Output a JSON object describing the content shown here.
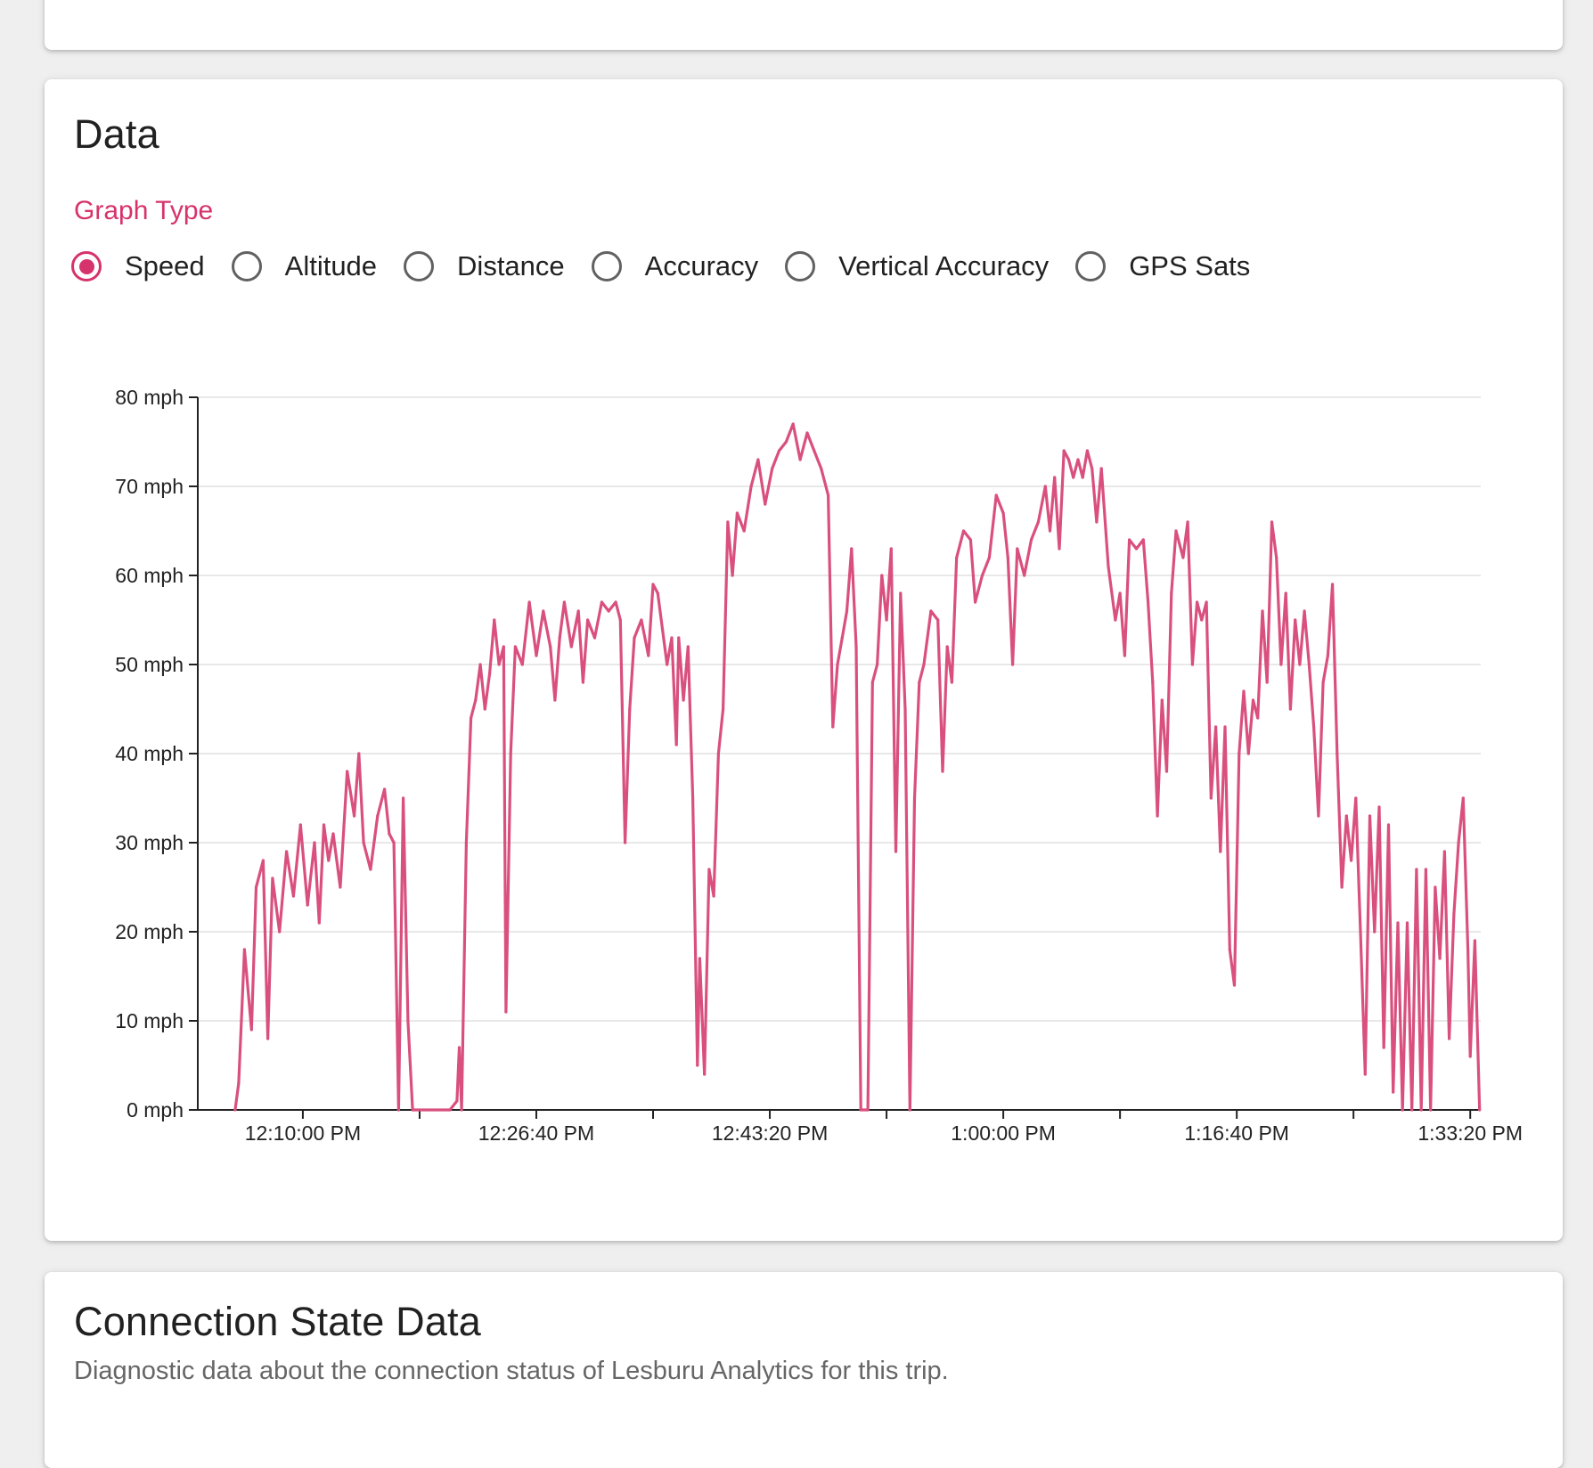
{
  "data_card": {
    "title": "Data",
    "graph_type_label": "Graph Type",
    "graph_types": [
      {
        "label": "Speed",
        "selected": true
      },
      {
        "label": "Altitude",
        "selected": false
      },
      {
        "label": "Distance",
        "selected": false
      },
      {
        "label": "Accuracy",
        "selected": false
      },
      {
        "label": "Vertical Accuracy",
        "selected": false
      },
      {
        "label": "GPS Sats",
        "selected": false
      }
    ]
  },
  "connection_card": {
    "title": "Connection State Data",
    "subtitle": "Diagnostic data about the connection status of Lesburu Analytics for this trip."
  },
  "colors": {
    "accent": "#d6336c",
    "line": "#d9507e",
    "grid": "#e0e0e0"
  },
  "chart_data": {
    "type": "line",
    "title": "",
    "xlabel": "",
    "ylabel": "",
    "ylim": [
      0,
      80
    ],
    "y_ticks": [
      {
        "value": 0,
        "label": "0 mph"
      },
      {
        "value": 10,
        "label": "10 mph"
      },
      {
        "value": 20,
        "label": "20 mph"
      },
      {
        "value": 30,
        "label": "30 mph"
      },
      {
        "value": 40,
        "label": "40 mph"
      },
      {
        "value": 50,
        "label": "50 mph"
      },
      {
        "value": 60,
        "label": "60 mph"
      },
      {
        "value": 70,
        "label": "70 mph"
      },
      {
        "value": 80,
        "label": "80 mph"
      }
    ],
    "x_ticks": [
      "12:10:00 PM",
      "12:26:40 PM",
      "12:43:20 PM",
      "1:00:00 PM",
      "1:16:40 PM",
      "1:33:20 PM"
    ],
    "grid": true,
    "series": [
      {
        "name": "",
        "points": [
          [
            "12:05:10 PM",
            0
          ],
          [
            "12:05:25 PM",
            3
          ],
          [
            "12:05:50 PM",
            18
          ],
          [
            "12:06:20 PM",
            9
          ],
          [
            "12:06:40 PM",
            25
          ],
          [
            "12:07:10 PM",
            28
          ],
          [
            "12:07:30 PM",
            8
          ],
          [
            "12:07:50 PM",
            26
          ],
          [
            "12:08:20 PM",
            20
          ],
          [
            "12:08:50 PM",
            29
          ],
          [
            "12:09:20 PM",
            24
          ],
          [
            "12:09:50 PM",
            32
          ],
          [
            "12:10:20 PM",
            23
          ],
          [
            "12:10:50 PM",
            30
          ],
          [
            "12:11:10 PM",
            21
          ],
          [
            "12:11:30 PM",
            32
          ],
          [
            "12:11:50 PM",
            28
          ],
          [
            "12:12:10 PM",
            31
          ],
          [
            "12:12:40 PM",
            25
          ],
          [
            "12:13:10 PM",
            38
          ],
          [
            "12:13:40 PM",
            33
          ],
          [
            "12:14:00 PM",
            40
          ],
          [
            "12:14:20 PM",
            30
          ],
          [
            "12:14:50 PM",
            27
          ],
          [
            "12:15:20 PM",
            33
          ],
          [
            "12:15:50 PM",
            36
          ],
          [
            "12:16:10 PM",
            31
          ],
          [
            "12:16:30 PM",
            30
          ],
          [
            "12:16:50 PM",
            0
          ],
          [
            "12:17:10 PM",
            35
          ],
          [
            "12:17:30 PM",
            10
          ],
          [
            "12:17:50 PM",
            0
          ],
          [
            "12:20:30 PM",
            0
          ],
          [
            "12:21:00 PM",
            1
          ],
          [
            "12:21:10 PM",
            7
          ],
          [
            "12:21:20 PM",
            0
          ],
          [
            "12:21:40 PM",
            30
          ],
          [
            "12:22:00 PM",
            44
          ],
          [
            "12:22:20 PM",
            46
          ],
          [
            "12:22:40 PM",
            50
          ],
          [
            "12:23:00 PM",
            45
          ],
          [
            "12:23:20 PM",
            49
          ],
          [
            "12:23:40 PM",
            55
          ],
          [
            "12:24:00 PM",
            50
          ],
          [
            "12:24:20 PM",
            52
          ],
          [
            "12:24:30 PM",
            11
          ],
          [
            "12:24:50 PM",
            40
          ],
          [
            "12:25:10 PM",
            52
          ],
          [
            "12:25:40 PM",
            50
          ],
          [
            "12:26:10 PM",
            57
          ],
          [
            "12:26:40 PM",
            51
          ],
          [
            "12:27:10 PM",
            56
          ],
          [
            "12:27:40 PM",
            52
          ],
          [
            "12:28:00 PM",
            46
          ],
          [
            "12:28:20 PM",
            53
          ],
          [
            "12:28:40 PM",
            57
          ],
          [
            "12:29:10 PM",
            52
          ],
          [
            "12:29:40 PM",
            56
          ],
          [
            "12:30:00 PM",
            48
          ],
          [
            "12:30:20 PM",
            55
          ],
          [
            "12:30:50 PM",
            53
          ],
          [
            "12:31:20 PM",
            57
          ],
          [
            "12:31:50 PM",
            56
          ],
          [
            "12:32:20 PM",
            57
          ],
          [
            "12:32:40 PM",
            55
          ],
          [
            "12:33:00 PM",
            30
          ],
          [
            "12:33:20 PM",
            45
          ],
          [
            "12:33:40 PM",
            53
          ],
          [
            "12:34:10 PM",
            55
          ],
          [
            "12:34:40 PM",
            51
          ],
          [
            "12:35:00 PM",
            59
          ],
          [
            "12:35:20 PM",
            58
          ],
          [
            "12:35:40 PM",
            54
          ],
          [
            "12:36:00 PM",
            50
          ],
          [
            "12:36:20 PM",
            53
          ],
          [
            "12:36:40 PM",
            41
          ],
          [
            "12:36:50 PM",
            53
          ],
          [
            "12:37:10 PM",
            46
          ],
          [
            "12:37:30 PM",
            52
          ],
          [
            "12:37:50 PM",
            35
          ],
          [
            "12:38:10 PM",
            5
          ],
          [
            "12:38:20 PM",
            17
          ],
          [
            "12:38:40 PM",
            4
          ],
          [
            "12:39:00 PM",
            27
          ],
          [
            "12:39:20 PM",
            24
          ],
          [
            "12:39:40 PM",
            40
          ],
          [
            "12:40:00 PM",
            45
          ],
          [
            "12:40:20 PM",
            66
          ],
          [
            "12:40:40 PM",
            60
          ],
          [
            "12:41:00 PM",
            67
          ],
          [
            "12:41:30 PM",
            65
          ],
          [
            "12:42:00 PM",
            70
          ],
          [
            "12:42:30 PM",
            73
          ],
          [
            "12:43:00 PM",
            68
          ],
          [
            "12:43:30 PM",
            72
          ],
          [
            "12:44:00 PM",
            74
          ],
          [
            "12:44:30 PM",
            75
          ],
          [
            "12:45:00 PM",
            77
          ],
          [
            "12:45:30 PM",
            73
          ],
          [
            "12:46:00 PM",
            76
          ],
          [
            "12:46:30 PM",
            74
          ],
          [
            "12:47:00 PM",
            72
          ],
          [
            "12:47:30 PM",
            69
          ],
          [
            "12:47:50 PM",
            43
          ],
          [
            "12:48:10 PM",
            50
          ],
          [
            "12:48:30 PM",
            53
          ],
          [
            "12:48:50 PM",
            56
          ],
          [
            "12:49:10 PM",
            63
          ],
          [
            "12:49:30 PM",
            52
          ],
          [
            "12:49:50 PM",
            0
          ],
          [
            "12:50:20 PM",
            0
          ],
          [
            "12:50:40 PM",
            48
          ],
          [
            "12:51:00 PM",
            50
          ],
          [
            "12:51:20 PM",
            60
          ],
          [
            "12:51:40 PM",
            55
          ],
          [
            "12:52:00 PM",
            63
          ],
          [
            "12:52:20 PM",
            29
          ],
          [
            "12:52:40 PM",
            58
          ],
          [
            "12:53:00 PM",
            45
          ],
          [
            "12:53:20 PM",
            0
          ],
          [
            "12:53:40 PM",
            35
          ],
          [
            "12:54:00 PM",
            48
          ],
          [
            "12:54:20 PM",
            50
          ],
          [
            "12:54:50 PM",
            56
          ],
          [
            "12:55:20 PM",
            55
          ],
          [
            "12:55:40 PM",
            38
          ],
          [
            "12:56:00 PM",
            52
          ],
          [
            "12:56:20 PM",
            48
          ],
          [
            "12:56:40 PM",
            62
          ],
          [
            "12:57:10 PM",
            65
          ],
          [
            "12:57:40 PM",
            64
          ],
          [
            "12:58:00 PM",
            57
          ],
          [
            "12:58:30 PM",
            60
          ],
          [
            "12:59:00 PM",
            62
          ],
          [
            "12:59:30 PM",
            69
          ],
          [
            "1:00:00 PM",
            67
          ],
          [
            "1:00:20 PM",
            62
          ],
          [
            "1:00:40 PM",
            50
          ],
          [
            "1:01:00 PM",
            63
          ],
          [
            "1:01:30 PM",
            60
          ],
          [
            "1:02:00 PM",
            64
          ],
          [
            "1:02:30 PM",
            66
          ],
          [
            "1:03:00 PM",
            70
          ],
          [
            "1:03:20 PM",
            65
          ],
          [
            "1:03:40 PM",
            71
          ],
          [
            "1:04:00 PM",
            63
          ],
          [
            "1:04:20 PM",
            74
          ],
          [
            "1:04:40 PM",
            73
          ],
          [
            "1:05:00 PM",
            71
          ],
          [
            "1:05:20 PM",
            73
          ],
          [
            "1:05:40 PM",
            71
          ],
          [
            "1:06:00 PM",
            74
          ],
          [
            "1:06:20 PM",
            72
          ],
          [
            "1:06:40 PM",
            66
          ],
          [
            "1:07:00 PM",
            72
          ],
          [
            "1:07:30 PM",
            61
          ],
          [
            "1:08:00 PM",
            55
          ],
          [
            "1:08:20 PM",
            58
          ],
          [
            "1:08:40 PM",
            51
          ],
          [
            "1:09:00 PM",
            64
          ],
          [
            "1:09:30 PM",
            63
          ],
          [
            "1:10:00 PM",
            64
          ],
          [
            "1:10:20 PM",
            57
          ],
          [
            "1:10:40 PM",
            48
          ],
          [
            "1:11:00 PM",
            33
          ],
          [
            "1:11:20 PM",
            46
          ],
          [
            "1:11:40 PM",
            38
          ],
          [
            "1:12:00 PM",
            58
          ],
          [
            "1:12:20 PM",
            65
          ],
          [
            "1:12:50 PM",
            62
          ],
          [
            "1:13:10 PM",
            66
          ],
          [
            "1:13:30 PM",
            50
          ],
          [
            "1:13:50 PM",
            57
          ],
          [
            "1:14:10 PM",
            55
          ],
          [
            "1:14:30 PM",
            57
          ],
          [
            "1:14:50 PM",
            35
          ],
          [
            "1:15:10 PM",
            43
          ],
          [
            "1:15:30 PM",
            29
          ],
          [
            "1:15:50 PM",
            43
          ],
          [
            "1:16:10 PM",
            18
          ],
          [
            "1:16:30 PM",
            14
          ],
          [
            "1:16:50 PM",
            40
          ],
          [
            "1:17:10 PM",
            47
          ],
          [
            "1:17:30 PM",
            40
          ],
          [
            "1:17:50 PM",
            46
          ],
          [
            "1:18:10 PM",
            44
          ],
          [
            "1:18:30 PM",
            56
          ],
          [
            "1:18:50 PM",
            48
          ],
          [
            "1:19:10 PM",
            66
          ],
          [
            "1:19:30 PM",
            62
          ],
          [
            "1:19:50 PM",
            50
          ],
          [
            "1:20:10 PM",
            58
          ],
          [
            "1:20:30 PM",
            45
          ],
          [
            "1:20:50 PM",
            55
          ],
          [
            "1:21:10 PM",
            50
          ],
          [
            "1:21:30 PM",
            56
          ],
          [
            "1:21:50 PM",
            50
          ],
          [
            "1:22:10 PM",
            43
          ],
          [
            "1:22:30 PM",
            33
          ],
          [
            "1:22:50 PM",
            48
          ],
          [
            "1:23:10 PM",
            51
          ],
          [
            "1:23:30 PM",
            59
          ],
          [
            "1:23:50 PM",
            40
          ],
          [
            "1:24:10 PM",
            25
          ],
          [
            "1:24:30 PM",
            33
          ],
          [
            "1:24:50 PM",
            28
          ],
          [
            "1:25:10 PM",
            35
          ],
          [
            "1:25:30 PM",
            20
          ],
          [
            "1:25:50 PM",
            4
          ],
          [
            "1:26:10 PM",
            33
          ],
          [
            "1:26:30 PM",
            20
          ],
          [
            "1:26:50 PM",
            34
          ],
          [
            "1:27:10 PM",
            7
          ],
          [
            "1:27:30 PM",
            32
          ],
          [
            "1:27:50 PM",
            2
          ],
          [
            "1:28:10 PM",
            21
          ],
          [
            "1:28:30 PM",
            0
          ],
          [
            "1:28:50 PM",
            21
          ],
          [
            "1:29:10 PM",
            0
          ],
          [
            "1:29:30 PM",
            27
          ],
          [
            "1:29:50 PM",
            0
          ],
          [
            "1:30:10 PM",
            27
          ],
          [
            "1:30:30 PM",
            0
          ],
          [
            "1:30:50 PM",
            25
          ],
          [
            "1:31:10 PM",
            17
          ],
          [
            "1:31:30 PM",
            29
          ],
          [
            "1:31:50 PM",
            8
          ],
          [
            "1:32:10 PM",
            22
          ],
          [
            "1:32:30 PM",
            30
          ],
          [
            "1:32:50 PM",
            35
          ],
          [
            "1:33:10 PM",
            18
          ],
          [
            "1:33:20 PM",
            6
          ],
          [
            "1:33:40 PM",
            19
          ],
          [
            "1:34:00 PM",
            0
          ]
        ]
      }
    ]
  }
}
